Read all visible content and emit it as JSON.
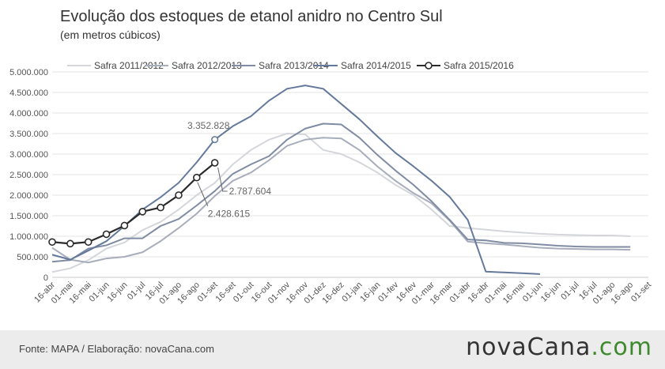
{
  "title": "Evolução dos estoques de etanol anidro no Centro Sul",
  "subtitle": "(em metros cúbicos)",
  "footer": {
    "source": "Fonte: MAPA / Elaboração: novaCana.com"
  },
  "logo": {
    "text_main": "novaCana",
    "text_dot": ".com",
    "accent_color": "#3d8a2e"
  },
  "chart_data": {
    "type": "line",
    "categories": [
      "16-abr",
      "01-mai",
      "16-mai",
      "01-jun",
      "16-jun",
      "01-jul",
      "16-jul",
      "01-ago",
      "16-ago",
      "01-set",
      "16-set",
      "01-out",
      "16-out",
      "01-nov",
      "16-nov",
      "01-dez",
      "16-dez",
      "01-jan",
      "16-jan",
      "01-fev",
      "16-fev",
      "01-mar",
      "16-mar",
      "01-abr",
      "16-abr",
      "01-mai",
      "16-mai",
      "01-jun",
      "16-jun",
      "01-jul",
      "16-jul",
      "01-ago",
      "16-ago",
      "01-set"
    ],
    "ylim": [
      0,
      5000000
    ],
    "yticks": [
      0,
      500000,
      1000000,
      1500000,
      2000000,
      2500000,
      3000000,
      3500000,
      4000000,
      4500000,
      5000000
    ],
    "ytick_labels": [
      "0",
      "500.000",
      "1.000.000",
      "1.500.000",
      "2.000.000",
      "2.500.000",
      "3.000.000",
      "3.500.000",
      "4.000.000",
      "4.500.000",
      "5.000.000"
    ],
    "grid": true,
    "legend_position": "top",
    "series": [
      {
        "name": "Safra 2011/2012",
        "color": "#d4d6dc",
        "markers": false,
        "values": [
          130000,
          220000,
          420000,
          700000,
          850000,
          1150000,
          1350000,
          1650000,
          2000000,
          2300000,
          2750000,
          3100000,
          3350000,
          3500000,
          3480000,
          3100000,
          3000000,
          2800000,
          2550000,
          2250000,
          2000000,
          1650000,
          1250000,
          1200000,
          1160000,
          1120000,
          1090000,
          1060000,
          1040000,
          1030000,
          1020000,
          1020000,
          1000000,
          null
        ]
      },
      {
        "name": "Safra 2012/2013",
        "color": "#a7adbb",
        "markers": false,
        "values": [
          720000,
          430000,
          360000,
          460000,
          500000,
          610000,
          880000,
          1200000,
          1550000,
          1980000,
          2350000,
          2550000,
          2850000,
          3200000,
          3350000,
          3400000,
          3380000,
          3100000,
          2700000,
          2350000,
          2050000,
          1800000,
          1380000,
          870000,
          830000,
          800000,
          760000,
          720000,
          700000,
          690000,
          680000,
          680000,
          670000,
          null
        ]
      },
      {
        "name": "Safra 2013/2014",
        "color": "#7f8ca3",
        "markers": false,
        "values": [
          380000,
          420000,
          700000,
          780000,
          950000,
          950000,
          1250000,
          1420000,
          1750000,
          2100000,
          2520000,
          2750000,
          2950000,
          3350000,
          3620000,
          3740000,
          3720000,
          3400000,
          2980000,
          2600000,
          2250000,
          1850000,
          1400000,
          920000,
          900000,
          840000,
          830000,
          800000,
          770000,
          750000,
          740000,
          740000,
          740000,
          null
        ]
      },
      {
        "name": "Safra 2014/2015",
        "color": "#64799b",
        "markers": false,
        "values": [
          550000,
          430000,
          650000,
          880000,
          1250000,
          1650000,
          1950000,
          2300000,
          2800000,
          3352828,
          3680000,
          3920000,
          4300000,
          4590000,
          4670000,
          4590000,
          4220000,
          3850000,
          3430000,
          3030000,
          2700000,
          2350000,
          1960000,
          1400000,
          140000,
          120000,
          100000,
          80000,
          null,
          null,
          null,
          null,
          null,
          null
        ]
      },
      {
        "name": "Safra 2015/2016",
        "color": "#2b2b2b",
        "markers": true,
        "values": [
          860000,
          820000,
          860000,
          1050000,
          1260000,
          1600000,
          1700000,
          2000000,
          2428615,
          2787604,
          null,
          null,
          null,
          null,
          null,
          null,
          null,
          null,
          null,
          null,
          null,
          null,
          null,
          null,
          null,
          null,
          null,
          null,
          null,
          null,
          null,
          null,
          null,
          null
        ]
      }
    ],
    "annotations": [
      {
        "text": "3.352.828",
        "series": "Safra 2014/2015",
        "category": "01-set",
        "value": 3352828
      },
      {
        "text": "2.787.604",
        "series": "Safra 2015/2016",
        "category": "01-set",
        "value": 2787604
      },
      {
        "text": "2.428.615",
        "series": "Safra 2015/2016",
        "category": "16-ago",
        "value": 2428615
      }
    ]
  }
}
